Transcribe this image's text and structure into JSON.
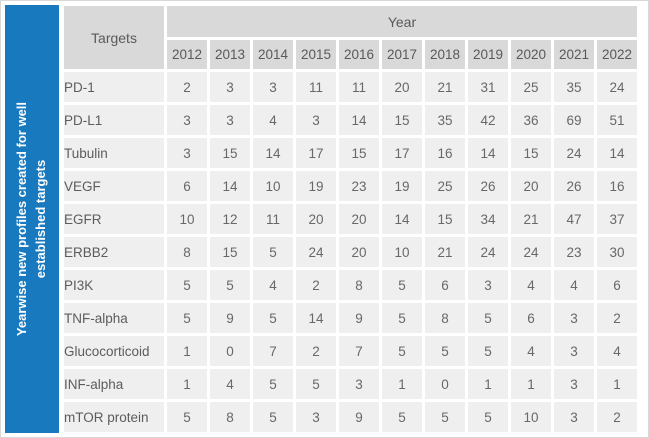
{
  "sidebar": {
    "label": "Yearwise new profiles created for well established targets"
  },
  "colors": {
    "accent_blue": "#1879be",
    "header_gray": "#d9d9d9",
    "cell_gray": "#efefef",
    "header_text": "#595959",
    "cell_text": "#686868"
  },
  "chart_data": {
    "type": "table",
    "corner_header": "Targets",
    "group_header": "Year",
    "years": [
      "2012",
      "2013",
      "2014",
      "2015",
      "2016",
      "2017",
      "2018",
      "2019",
      "2020",
      "2021",
      "2022"
    ],
    "rows": [
      {
        "target": "PD-1",
        "values": [
          2,
          3,
          3,
          11,
          11,
          20,
          21,
          31,
          25,
          35,
          24
        ]
      },
      {
        "target": "PD-L1",
        "values": [
          3,
          3,
          4,
          3,
          14,
          15,
          35,
          42,
          36,
          69,
          51
        ]
      },
      {
        "target": "Tubulin",
        "values": [
          3,
          15,
          14,
          17,
          15,
          17,
          16,
          14,
          15,
          24,
          14
        ]
      },
      {
        "target": "VEGF",
        "values": [
          6,
          14,
          10,
          19,
          23,
          19,
          25,
          26,
          20,
          26,
          16
        ]
      },
      {
        "target": "EGFR",
        "values": [
          10,
          12,
          11,
          20,
          20,
          14,
          15,
          34,
          21,
          47,
          37
        ]
      },
      {
        "target": "ERBB2",
        "values": [
          8,
          15,
          5,
          24,
          20,
          10,
          21,
          24,
          24,
          23,
          30
        ]
      },
      {
        "target": "PI3K",
        "values": [
          5,
          5,
          4,
          2,
          8,
          5,
          6,
          3,
          4,
          4,
          6
        ]
      },
      {
        "target": "TNF-alpha",
        "values": [
          5,
          9,
          5,
          14,
          9,
          5,
          8,
          5,
          6,
          3,
          2
        ]
      },
      {
        "target": "Glucocorticoid",
        "values": [
          1,
          0,
          7,
          2,
          7,
          5,
          5,
          5,
          4,
          3,
          4
        ]
      },
      {
        "target": "INF-alpha",
        "values": [
          1,
          4,
          5,
          5,
          3,
          1,
          0,
          1,
          1,
          3,
          1
        ]
      },
      {
        "target": "mTOR protein",
        "values": [
          5,
          8,
          5,
          3,
          9,
          5,
          5,
          5,
          10,
          3,
          2
        ]
      }
    ]
  }
}
